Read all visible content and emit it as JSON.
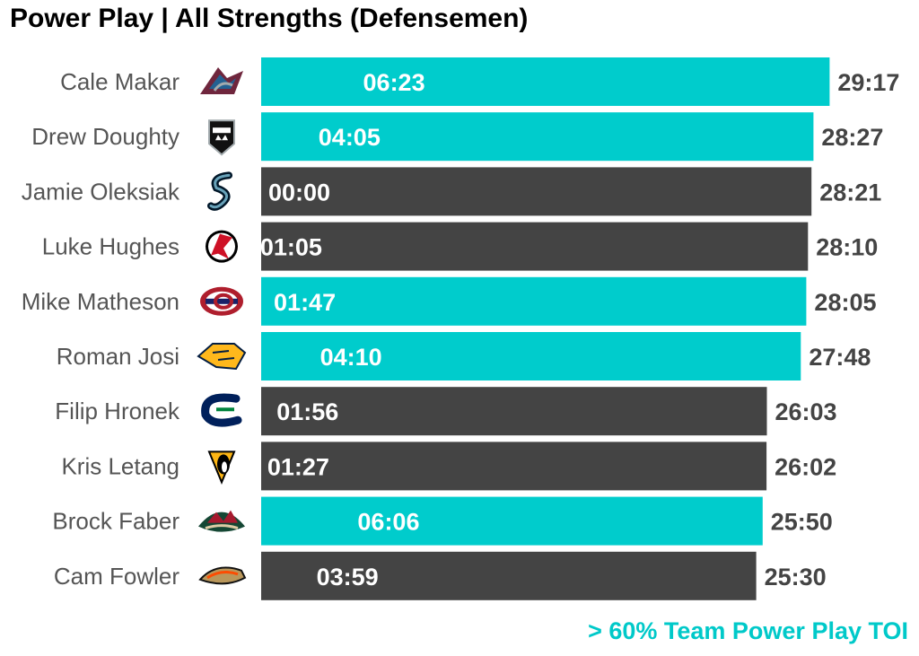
{
  "title": "Power Play | All Strengths (Defensemen)",
  "footnote": "> 60% Team Power Play TOI",
  "colors": {
    "highlight": "#00cccc",
    "default": "#444444",
    "inner_label": "#ffffff",
    "outer_label": "#444444",
    "player_label": "#555555"
  },
  "chart_data": {
    "type": "bar",
    "orientation": "horizontal",
    "title": "Power Play | All Strengths (Defensemen)",
    "xlabel": "",
    "ylabel": "",
    "xlim_minutes": [
      0,
      30
    ],
    "grid": false,
    "legend": "none",
    "categories": [
      "Cale Makar",
      "Drew Doughty",
      "Jamie Oleksiak",
      "Luke Hughes",
      "Mike Matheson",
      "Roman Josi",
      "Filip Hronek",
      "Kris Letang",
      "Brock Faber",
      "Cam Fowler"
    ],
    "total_toi": [
      "29:17",
      "28:27",
      "28:21",
      "28:10",
      "28:05",
      "27:48",
      "26:03",
      "26:02",
      "25:50",
      "25:30"
    ],
    "total_toi_minutes": [
      29.283,
      28.45,
      28.35,
      28.167,
      28.083,
      27.8,
      26.05,
      26.033,
      25.833,
      25.5
    ],
    "pp_toi": [
      "06:23",
      "04:05",
      "00:00",
      "01:05",
      "01:47",
      "04:10",
      "01:56",
      "01:27",
      "06:06",
      "03:59"
    ],
    "pp_toi_minutes": [
      6.383,
      4.083,
      0,
      1.083,
      1.783,
      4.167,
      1.933,
      1.45,
      6.1,
      3.983
    ],
    "over_60pct_team_pp": [
      true,
      true,
      false,
      false,
      true,
      true,
      false,
      false,
      true,
      false
    ],
    "team_icons": [
      "avalanche-logo",
      "kings-logo",
      "kraken-logo",
      "devils-logo",
      "canadiens-logo",
      "predators-logo",
      "canucks-logo",
      "penguins-logo",
      "wild-logo",
      "ducks-logo"
    ]
  }
}
